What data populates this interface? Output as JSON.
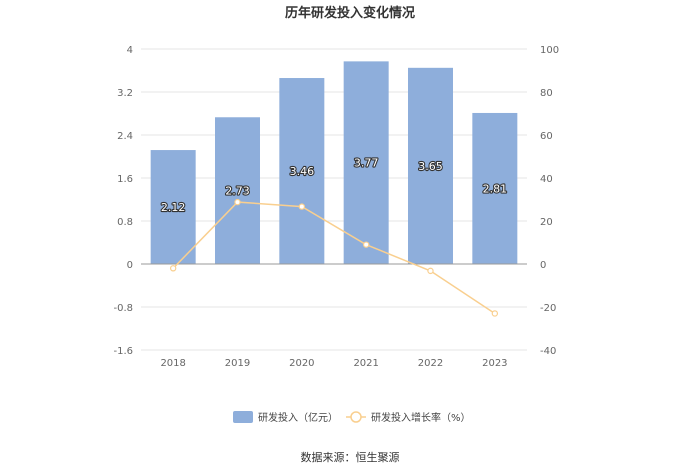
{
  "chart_data": {
    "type": "bar",
    "title": "历年研发投入变化情况",
    "categories": [
      "2018",
      "2019",
      "2020",
      "2021",
      "2022",
      "2023"
    ],
    "series": [
      {
        "name": "研发投入（亿元）",
        "type": "bar",
        "axis": "left",
        "color": "#8eaedb",
        "values": [
          2.12,
          2.73,
          3.46,
          3.77,
          3.65,
          2.81
        ],
        "labels": [
          "2.12",
          "2.73",
          "3.46",
          "3.77",
          "3.65",
          "2.81"
        ]
      },
      {
        "name": "研发投入增长率（%）",
        "type": "line",
        "axis": "right",
        "color": "#f9cf8f",
        "values": [
          -2.0,
          28.8,
          26.7,
          9.0,
          -3.2,
          -23.0
        ]
      }
    ],
    "y_left": {
      "min": -1.6,
      "max": 4,
      "ticks": [
        "4",
        "3.2",
        "2.4",
        "1.6",
        "0.8",
        "0",
        "-0.8",
        "-1.6"
      ]
    },
    "y_right": {
      "min": -40,
      "max": 100,
      "ticks": [
        "100",
        "80",
        "60",
        "40",
        "20",
        "0",
        "-20",
        "-40"
      ]
    },
    "grid": true,
    "legend_position": "bottom-center"
  },
  "source_text": "数据来源：恒生聚源"
}
